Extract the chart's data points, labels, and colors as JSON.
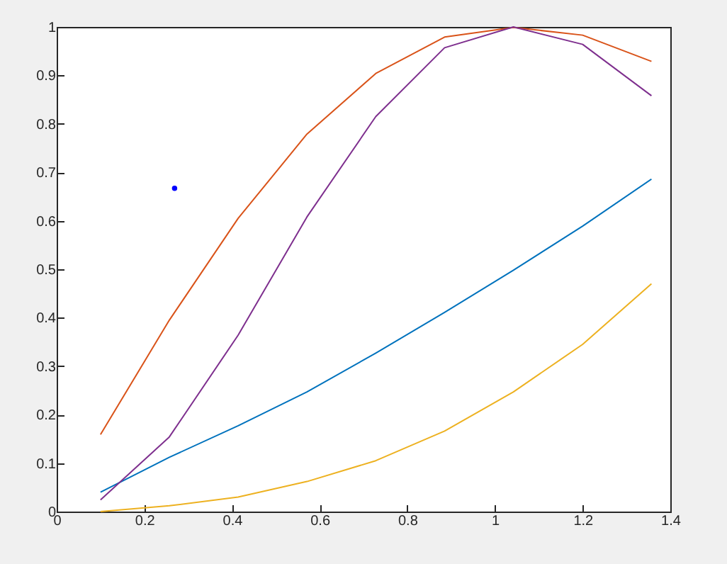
{
  "chart_data": {
    "type": "line",
    "x": [
      0.1,
      0.257,
      0.414,
      0.571,
      0.728,
      0.885,
      1.042,
      1.2,
      1.357
    ],
    "series": [
      {
        "color": "#0072bd",
        "values": [
          0.04,
          0.112,
          0.177,
          0.247,
          0.327,
          0.411,
          0.498,
          0.589,
          0.686
        ]
      },
      {
        "color": "#d95319",
        "values": [
          0.159,
          0.395,
          0.605,
          0.779,
          0.904,
          0.979,
          0.999,
          0.983,
          0.929
        ]
      },
      {
        "color": "#edb120",
        "values": [
          0.0,
          0.012,
          0.03,
          0.062,
          0.105,
          0.166,
          0.247,
          0.345,
          0.47
        ]
      },
      {
        "color": "#7e2f8e",
        "values": [
          0.024,
          0.154,
          0.364,
          0.608,
          0.815,
          0.957,
          1.0,
          0.964,
          0.858
        ]
      },
      {
        "type": "scatter",
        "color": "#0000ff",
        "x": [
          0.269
        ],
        "values": [
          0.667
        ]
      }
    ],
    "xlim": [
      0,
      1.4
    ],
    "xticks": [
      0,
      0.2,
      0.4,
      0.6,
      0.8,
      1,
      1.2,
      1.4
    ],
    "ylim": [
      0,
      1
    ],
    "yticks": [
      0,
      0.1,
      0.2,
      0.3,
      0.4,
      0.5,
      0.6,
      0.7,
      0.8,
      0.9,
      1
    ],
    "grid": false,
    "marker": "none",
    "line_style": "solid"
  }
}
